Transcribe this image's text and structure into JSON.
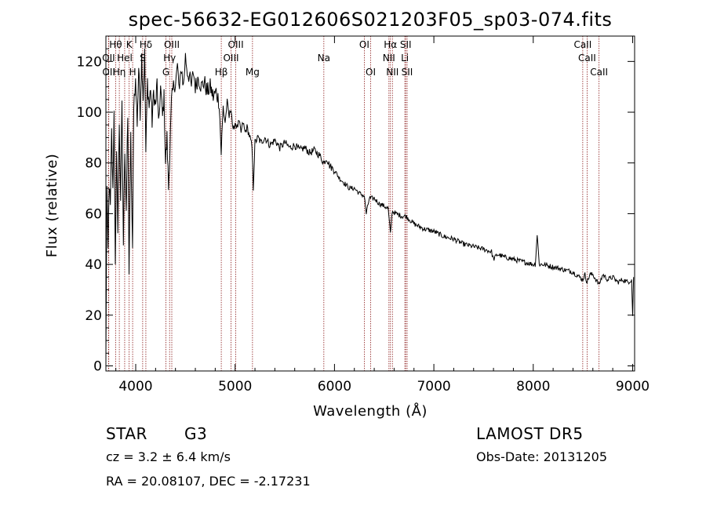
{
  "chart_data": {
    "type": "line",
    "title": "spec-56632-EG012606S021203F05_sp03-074.fits",
    "xlabel": "Wavelength (Å)",
    "ylabel": "Flux (relative)",
    "xlim": [
      3700,
      9020
    ],
    "ylim": [
      -2,
      130
    ],
    "x_ticks": [
      4000,
      5000,
      6000,
      7000,
      8000,
      9000
    ],
    "y_ticks": [
      0,
      20,
      40,
      60,
      80,
      100,
      120
    ],
    "grid": false,
    "line_color": "#000000",
    "line_marker_color": "#8b1a1a",
    "spectrum_anchors": [
      [
        3700,
        2
      ],
      [
        3710,
        70
      ],
      [
        3722,
        45
      ],
      [
        3732,
        72
      ],
      [
        3745,
        62
      ],
      [
        3758,
        92
      ],
      [
        3770,
        68
      ],
      [
        3782,
        100
      ],
      [
        3795,
        42
      ],
      [
        3808,
        82
      ],
      [
        3820,
        55
      ],
      [
        3835,
        96
      ],
      [
        3848,
        66
      ],
      [
        3862,
        102
      ],
      [
        3876,
        48
      ],
      [
        3890,
        86
      ],
      [
        3905,
        62
      ],
      [
        3920,
        98
      ],
      [
        3933,
        38
      ],
      [
        3950,
        90
      ],
      [
        3968,
        44
      ],
      [
        3980,
        104
      ],
      [
        3998,
        112
      ],
      [
        4015,
        96
      ],
      [
        4030,
        118
      ],
      [
        4045,
        100
      ],
      [
        4060,
        122
      ],
      [
        4075,
        106
      ],
      [
        4090,
        123
      ],
      [
        4102,
        84
      ],
      [
        4118,
        112
      ],
      [
        4135,
        102
      ],
      [
        4150,
        110
      ],
      [
        4165,
        96
      ],
      [
        4180,
        108
      ],
      [
        4200,
        102
      ],
      [
        4215,
        112
      ],
      [
        4230,
        94
      ],
      [
        4250,
        110
      ],
      [
        4270,
        98
      ],
      [
        4285,
        106
      ],
      [
        4300,
        80
      ],
      [
        4315,
        90
      ],
      [
        4330,
        70
      ],
      [
        4345,
        86
      ],
      [
        4360,
        104
      ],
      [
        4380,
        110
      ],
      [
        4400,
        112
      ],
      [
        4420,
        118
      ],
      [
        4440,
        108
      ],
      [
        4460,
        118
      ],
      [
        4480,
        110
      ],
      [
        4500,
        122
      ],
      [
        4520,
        116
      ],
      [
        4540,
        114
      ],
      [
        4560,
        110
      ],
      [
        4580,
        116
      ],
      [
        4600,
        110
      ],
      [
        4630,
        114
      ],
      [
        4660,
        110
      ],
      [
        4690,
        112
      ],
      [
        4720,
        108
      ],
      [
        4750,
        110
      ],
      [
        4780,
        106
      ],
      [
        4810,
        108
      ],
      [
        4840,
        104
      ],
      [
        4860,
        84
      ],
      [
        4880,
        102
      ],
      [
        4900,
        96
      ],
      [
        4920,
        104
      ],
      [
        4940,
        98
      ],
      [
        4960,
        102
      ],
      [
        4980,
        92
      ],
      [
        5000,
        96
      ],
      [
        5020,
        94
      ],
      [
        5040,
        96
      ],
      [
        5060,
        92
      ],
      [
        5080,
        96
      ],
      [
        5100,
        92
      ],
      [
        5120,
        94
      ],
      [
        5150,
        90
      ],
      [
        5170,
        86
      ],
      [
        5183,
        70
      ],
      [
        5200,
        88
      ],
      [
        5230,
        90
      ],
      [
        5260,
        88
      ],
      [
        5300,
        90
      ],
      [
        5350,
        87
      ],
      [
        5400,
        89
      ],
      [
        5450,
        86
      ],
      [
        5500,
        88
      ],
      [
        5550,
        86
      ],
      [
        5600,
        87
      ],
      [
        5650,
        85
      ],
      [
        5700,
        86
      ],
      [
        5750,
        84
      ],
      [
        5800,
        85
      ],
      [
        5850,
        83
      ],
      [
        5893,
        80
      ],
      [
        5920,
        82
      ],
      [
        5950,
        79
      ],
      [
        6000,
        77
      ],
      [
        6050,
        74
      ],
      [
        6100,
        72
      ],
      [
        6150,
        70
      ],
      [
        6200,
        70
      ],
      [
        6250,
        68
      ],
      [
        6300,
        67
      ],
      [
        6320,
        60
      ],
      [
        6350,
        66
      ],
      [
        6400,
        66
      ],
      [
        6450,
        64
      ],
      [
        6500,
        63
      ],
      [
        6540,
        62
      ],
      [
        6563,
        52
      ],
      [
        6580,
        61
      ],
      [
        6620,
        60
      ],
      [
        6680,
        59
      ],
      [
        6720,
        59
      ],
      [
        6800,
        56
      ],
      [
        6900,
        54
      ],
      [
        7000,
        53
      ],
      [
        7100,
        51
      ],
      [
        7200,
        50
      ],
      [
        7300,
        48
      ],
      [
        7400,
        47
      ],
      [
        7500,
        46
      ],
      [
        7580,
        45
      ],
      [
        7600,
        42
      ],
      [
        7640,
        44
      ],
      [
        7700,
        43
      ],
      [
        7800,
        42
      ],
      [
        7900,
        41
      ],
      [
        8000,
        40
      ],
      [
        8020,
        40
      ],
      [
        8040,
        52
      ],
      [
        8060,
        40
      ],
      [
        8100,
        40
      ],
      [
        8200,
        39
      ],
      [
        8300,
        38
      ],
      [
        8400,
        37
      ],
      [
        8498,
        34
      ],
      [
        8520,
        36
      ],
      [
        8542,
        33
      ],
      [
        8570,
        36
      ],
      [
        8600,
        36
      ],
      [
        8662,
        32
      ],
      [
        8700,
        36
      ],
      [
        8750,
        34
      ],
      [
        8800,
        35
      ],
      [
        8850,
        33
      ],
      [
        8900,
        34
      ],
      [
        8950,
        33
      ],
      [
        8990,
        34
      ],
      [
        9000,
        20
      ],
      [
        9010,
        35
      ]
    ],
    "spectral_lines": [
      {
        "label": "Hθ",
        "wavelength": 3798,
        "row": 0
      },
      {
        "label": "K",
        "wavelength": 3934,
        "row": 0
      },
      {
        "label": "Hδ",
        "wavelength": 4102,
        "row": 0
      },
      {
        "label": "OIII",
        "wavelength": 4363,
        "row": 0
      },
      {
        "label": "OIII",
        "wavelength": 5007,
        "row": 0
      },
      {
        "label": "OI",
        "wavelength": 6300,
        "row": 0
      },
      {
        "label": "Hα",
        "wavelength": 6563,
        "row": 0
      },
      {
        "label": "SII",
        "wavelength": 6717,
        "row": 0
      },
      {
        "label": "CaII",
        "wavelength": 8498,
        "row": 0
      },
      {
        "label": "OII",
        "wavelength": 3727,
        "row": 1
      },
      {
        "label": "Hel",
        "wavelength": 3889,
        "row": 1
      },
      {
        "label": "S",
        "wavelength": 4070,
        "row": 1
      },
      {
        "label": "Hγ",
        "wavelength": 4341,
        "row": 1
      },
      {
        "label": "OIII",
        "wavelength": 4959,
        "row": 1
      },
      {
        "label": "Na",
        "wavelength": 5893,
        "row": 1
      },
      {
        "label": "NII",
        "wavelength": 6548,
        "row": 1
      },
      {
        "label": "Li",
        "wavelength": 6708,
        "row": 1
      },
      {
        "label": "CaII",
        "wavelength": 8542,
        "row": 1
      },
      {
        "label": "OII",
        "wavelength": 3729,
        "row": 2
      },
      {
        "label": "Hη",
        "wavelength": 3835,
        "row": 2
      },
      {
        "label": "H",
        "wavelength": 3969,
        "row": 2
      },
      {
        "label": "G",
        "wavelength": 4304,
        "row": 2
      },
      {
        "label": "Hβ",
        "wavelength": 4861,
        "row": 2
      },
      {
        "label": "Mg",
        "wavelength": 5175,
        "row": 2
      },
      {
        "label": "OI",
        "wavelength": 6364,
        "row": 2
      },
      {
        "label": "NII",
        "wavelength": 6583,
        "row": 2
      },
      {
        "label": "SII",
        "wavelength": 6731,
        "row": 2
      },
      {
        "label": "CaII",
        "wavelength": 8662,
        "row": 2
      }
    ]
  },
  "info": {
    "object_class": "STAR",
    "subclass": "G3",
    "cz": "cz = 3.2 ± 6.4 km/s",
    "coords": "RA =  20.08107, DEC =  -2.17231",
    "survey": "LAMOST DR5",
    "obs_date": "Obs-Date: 20131205"
  }
}
